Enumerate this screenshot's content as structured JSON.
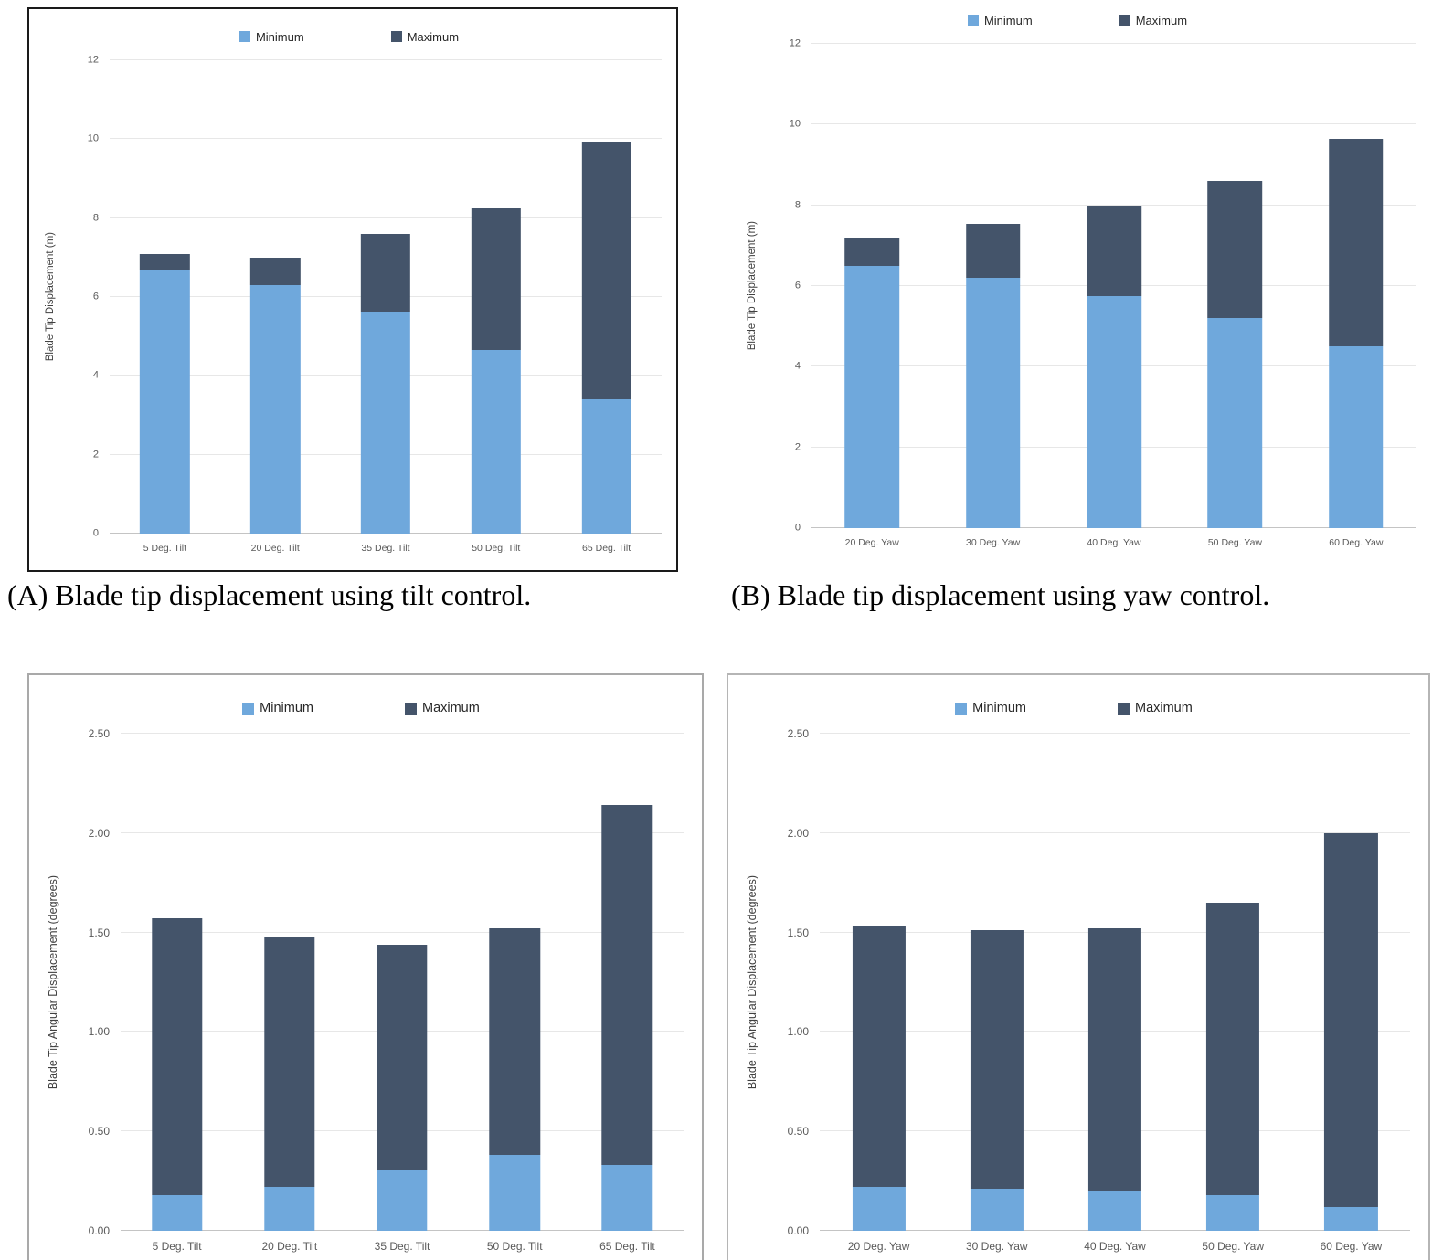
{
  "captions": {
    "a": "(A) Blade tip displacement using tilt control.",
    "b": "(B) Blade tip displacement using yaw control."
  },
  "colors": {
    "minimum": "#6fa8dc",
    "maximum": "#44546a",
    "gridline": "#e7e7e7"
  },
  "chart_data": [
    {
      "type": "bar",
      "stacked": true,
      "maximum_values_are_totals": true,
      "title": "",
      "ylabel": "Blade Tip Displacement (m)",
      "categories": [
        "5 Deg. Tilt",
        "20 Deg. Tilt",
        "35 Deg. Tilt",
        "50 Deg. Tilt",
        "65 Deg. Tilt"
      ],
      "series": [
        {
          "name": "Minimum",
          "color": "#6fa8dc",
          "values": [
            6.7,
            6.3,
            5.6,
            4.65,
            3.4
          ]
        },
        {
          "name": "Maximum",
          "color": "#44546a",
          "values": [
            7.1,
            7.0,
            7.6,
            8.25,
            9.95
          ]
        }
      ],
      "ylim": [
        0,
        12
      ],
      "yticks": [
        {
          "v": 0,
          "label": "0"
        },
        {
          "v": 2,
          "label": "2"
        },
        {
          "v": 4,
          "label": "4"
        },
        {
          "v": 6,
          "label": "6"
        },
        {
          "v": 8,
          "label": "8"
        },
        {
          "v": 10,
          "label": "10"
        },
        {
          "v": 12,
          "label": "12"
        }
      ],
      "grid": true,
      "legend_position": "top"
    },
    {
      "type": "bar",
      "stacked": true,
      "maximum_values_are_totals": true,
      "title": "",
      "ylabel": "Blade Tip Displacement (m)",
      "categories": [
        "20 Deg. Yaw",
        "30 Deg. Yaw",
        "40 Deg. Yaw",
        "50 Deg. Yaw",
        "60 Deg. Yaw"
      ],
      "series": [
        {
          "name": "Minimum",
          "color": "#6fa8dc",
          "values": [
            6.5,
            6.2,
            5.75,
            5.2,
            4.5
          ]
        },
        {
          "name": "Maximum",
          "color": "#44546a",
          "values": [
            7.2,
            7.55,
            8.0,
            8.6,
            9.65
          ]
        }
      ],
      "ylim": [
        0,
        12
      ],
      "yticks": [
        {
          "v": 0,
          "label": "0"
        },
        {
          "v": 2,
          "label": "2"
        },
        {
          "v": 4,
          "label": "4"
        },
        {
          "v": 6,
          "label": "6"
        },
        {
          "v": 8,
          "label": "8"
        },
        {
          "v": 10,
          "label": "10"
        },
        {
          "v": 12,
          "label": "12"
        }
      ],
      "grid": true,
      "legend_position": "top"
    },
    {
      "type": "bar",
      "stacked": true,
      "maximum_values_are_totals": true,
      "title": "",
      "ylabel": "Blade Tip Angular Displacement (degrees)",
      "categories": [
        "5 Deg. Tilt",
        "20 Deg. Tilt",
        "35 Deg. Tilt",
        "50 Deg. Tilt",
        "65 Deg. Tilt"
      ],
      "series": [
        {
          "name": "Minimum",
          "color": "#6fa8dc",
          "values": [
            0.18,
            0.22,
            0.31,
            0.38,
            0.33
          ]
        },
        {
          "name": "Maximum",
          "color": "#44546a",
          "values": [
            1.57,
            1.48,
            1.44,
            1.52,
            2.14
          ]
        }
      ],
      "ylim": [
        0,
        2.5
      ],
      "yticks": [
        {
          "v": 0,
          "label": "0.00"
        },
        {
          "v": 0.5,
          "label": "0.50"
        },
        {
          "v": 1,
          "label": "1.00"
        },
        {
          "v": 1.5,
          "label": "1.50"
        },
        {
          "v": 2,
          "label": "2.00"
        },
        {
          "v": 2.5,
          "label": "2.50"
        }
      ],
      "grid": true,
      "legend_position": "top"
    },
    {
      "type": "bar",
      "stacked": true,
      "maximum_values_are_totals": true,
      "title": "",
      "ylabel": "Blade Tip Angular Displacement (degrees)",
      "categories": [
        "20 Deg. Yaw",
        "30 Deg. Yaw",
        "40 Deg. Yaw",
        "50 Deg. Yaw",
        "60 Deg. Yaw"
      ],
      "series": [
        {
          "name": "Minimum",
          "color": "#6fa8dc",
          "values": [
            0.22,
            0.21,
            0.2,
            0.18,
            0.12
          ]
        },
        {
          "name": "Maximum",
          "color": "#44546a",
          "values": [
            1.53,
            1.51,
            1.52,
            1.65,
            2.0
          ]
        }
      ],
      "ylim": [
        0,
        2.5
      ],
      "yticks": [
        {
          "v": 0,
          "label": "0.00"
        },
        {
          "v": 0.5,
          "label": "0.50"
        },
        {
          "v": 1,
          "label": "1.00"
        },
        {
          "v": 1.5,
          "label": "1.50"
        },
        {
          "v": 2,
          "label": "2.00"
        },
        {
          "v": 2.5,
          "label": "2.50"
        }
      ],
      "grid": true,
      "legend_position": "top"
    }
  ]
}
